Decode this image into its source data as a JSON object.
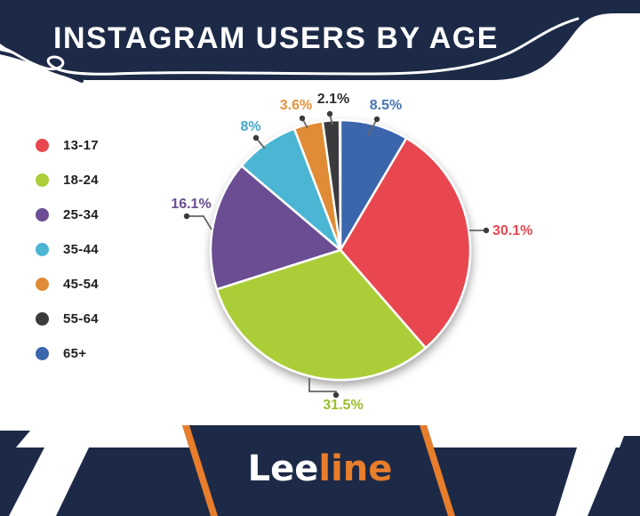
{
  "header": {
    "title": "INSTAGRAM USERS BY AGE"
  },
  "colors": {
    "navy": "#1d2a47",
    "orange": "#e87d2b",
    "leader_line": "#666666",
    "leader_dot": "#3a3a3a",
    "background": "#ffffff"
  },
  "logo": {
    "part1": "Lee",
    "part2": "line",
    "part1_color": "#ffffff",
    "part2_color": "#e87d2b"
  },
  "chart_data": {
    "type": "pie",
    "title": "INSTAGRAM USERS BY AGE",
    "legend_position": "left",
    "clockwise": true,
    "start_at_top": true,
    "order_from_top_clockwise": [
      "65+",
      "13-17",
      "18-24",
      "25-34",
      "35-44",
      "45-54",
      "55-64"
    ],
    "slices": [
      {
        "label": "13-17",
        "value": 30.1,
        "display": "30.1%",
        "color": "#e8474f",
        "label_color": "#e8474f"
      },
      {
        "label": "18-24",
        "value": 31.5,
        "display": "31.5%",
        "color": "#abce39",
        "label_color": "#9cbf2e"
      },
      {
        "label": "25-34",
        "value": 16.1,
        "display": "16.1%",
        "color": "#6a4d92",
        "label_color": "#6a4d92"
      },
      {
        "label": "35-44",
        "value": 8.0,
        "display": "8%",
        "color": "#4cb5d4",
        "label_color": "#45a7c8"
      },
      {
        "label": "45-54",
        "value": 3.6,
        "display": "3.6%",
        "color": "#e08b36",
        "label_color": "#e8923c"
      },
      {
        "label": "55-64",
        "value": 2.1,
        "display": "2.1%",
        "color": "#3b3b3d",
        "label_color": "#2e2e30"
      },
      {
        "label": "65+",
        "value": 8.5,
        "display": "8.5%",
        "color": "#3a66ac",
        "label_color": "#4a74b4"
      }
    ]
  }
}
